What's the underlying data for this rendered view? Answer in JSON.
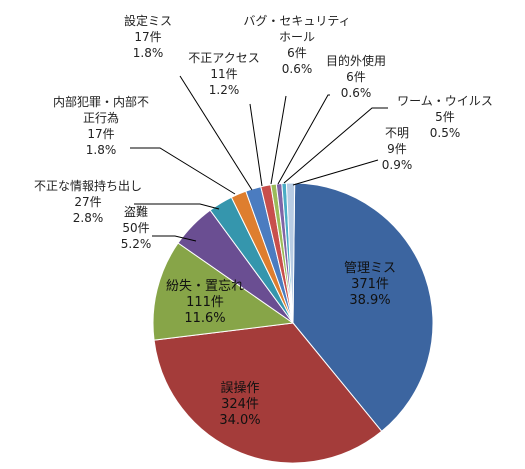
{
  "chart_data": {
    "type": "pie",
    "title": "",
    "slices": [
      {
        "name": "管理ミス",
        "count": "371件",
        "percent": "38.9%",
        "value": 371,
        "color": "#3c65a0"
      },
      {
        "name": "誤操作",
        "count": "324件",
        "percent": "34.0%",
        "value": 324,
        "color": "#a43c3a"
      },
      {
        "name": "紛失・置忘れ",
        "count": "111件",
        "percent": "11.6%",
        "value": 111,
        "color": "#87a548"
      },
      {
        "name": "盗難",
        "count": "50件",
        "percent": "5.2%",
        "value": 50,
        "color": "#6a4e92"
      },
      {
        "name": "不正な情報持ち出し",
        "count": "27件",
        "percent": "2.8%",
        "value": 27,
        "color": "#3596ad"
      },
      {
        "name": "内部犯罪・内部不正行為",
        "count": "17件",
        "percent": "1.8%",
        "value": 17,
        "color": "#de7e2f"
      },
      {
        "name": "設定ミス",
        "count": "17件",
        "percent": "1.8%",
        "value": 17,
        "color": "#4b7cc0"
      },
      {
        "name": "不正アクセス",
        "count": "11件",
        "percent": "1.2%",
        "value": 11,
        "color": "#c84f4c"
      },
      {
        "name": "バグ・セキュリティホール",
        "count": "6件",
        "percent": "0.6%",
        "value": 6,
        "color": "#9bbb59"
      },
      {
        "name": "目的外使用",
        "count": "6件",
        "percent": "0.6%",
        "value": 6,
        "color": "#8065a6"
      },
      {
        "name": "ワーム・ウイルス",
        "count": "5件",
        "percent": "0.5%",
        "value": 5,
        "color": "#4bacc6"
      },
      {
        "name": "不明",
        "count": "9件",
        "percent": "0.9%",
        "value": 9,
        "color": "#b8cce4"
      }
    ]
  }
}
